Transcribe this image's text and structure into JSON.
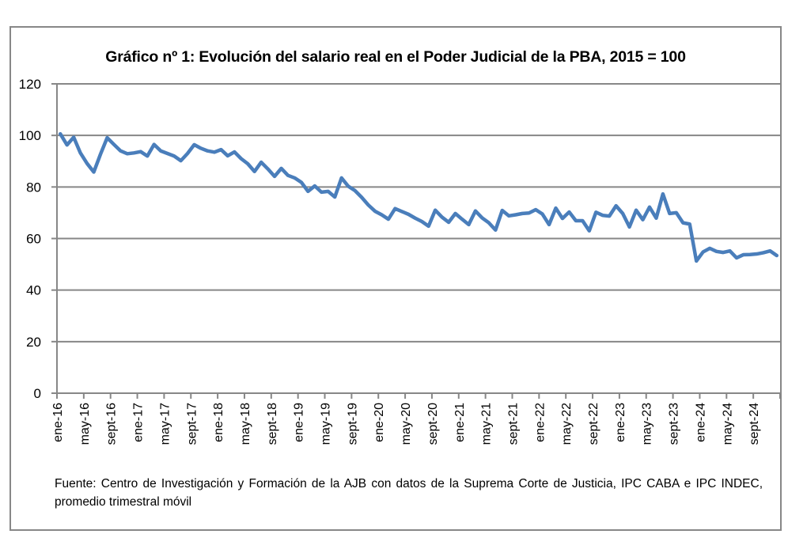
{
  "chart_data": {
    "type": "line",
    "title": "Gráfico nº 1: Evolución del salario real en el Poder Judicial de la PBA, 2015 = 100",
    "xlabel": "",
    "ylabel": "",
    "ylim": [
      0,
      120
    ],
    "yticks": [
      "0",
      "20",
      "40",
      "60",
      "80",
      "100",
      "120"
    ],
    "grid": true,
    "legend": "none",
    "line_color": "#4A7EBB",
    "x_tick_labels": [
      "ene-16",
      "may-16",
      "sept-16",
      "ene-17",
      "may-17",
      "sept-17",
      "ene-18",
      "may-18",
      "sept-18",
      "ene-19",
      "may-19",
      "sept-19",
      "ene-20",
      "may-20",
      "sept-20",
      "ene-21",
      "may-21",
      "sept-21",
      "ene-22",
      "may-22",
      "sept-22",
      "ene-23",
      "may-23",
      "sept-23",
      "ene-24",
      "may-24",
      "sept-24"
    ],
    "x_start": "ene-16",
    "x_end": "dic-24",
    "frequency": "monthly",
    "series": [
      {
        "name": "Salario real (2015 = 100)",
        "values": [
          100.6,
          96.3,
          99.3,
          93.2,
          89.1,
          85.8,
          92.7,
          99.1,
          96.5,
          94.0,
          92.9,
          93.2,
          93.7,
          92.0,
          96.5,
          94.0,
          93.0,
          92.0,
          90.2,
          93.0,
          96.4,
          95.0,
          94.0,
          93.5,
          94.5,
          92.1,
          93.6,
          91.0,
          89.0,
          86.0,
          89.6,
          87.0,
          84.1,
          87.2,
          84.5,
          83.5,
          81.8,
          78.3,
          80.4,
          78.0,
          78.3,
          76.1,
          83.5,
          80.3,
          78.6,
          76.0,
          73.0,
          70.6,
          69.2,
          67.5,
          71.6,
          70.5,
          69.4,
          67.9,
          66.6,
          64.8,
          71.0,
          68.3,
          66.3,
          69.7,
          67.5,
          65.4,
          70.7,
          68.0,
          66.1,
          63.3,
          70.9,
          68.8,
          69.2,
          69.7,
          69.9,
          71.2,
          69.5,
          65.4,
          71.8,
          67.8,
          70.3,
          66.9,
          66.9,
          63.0,
          70.2,
          69.0,
          68.7,
          72.7,
          69.7,
          64.5,
          71.0,
          67.3,
          72.2,
          67.9,
          77.3,
          69.7,
          70.0,
          66.1,
          65.6,
          51.3,
          54.8,
          56.2,
          55.0,
          54.6,
          55.2,
          52.5,
          53.7,
          53.8,
          54.0,
          54.5,
          55.2,
          53.4
        ]
      }
    ]
  },
  "footer": {
    "source_text": "Fuente: Centro de Investigación y Formación de la AJB con datos de la Suprema Corte de Justicia, IPC CABA e IPC INDEC, promedio trimestral móvil"
  }
}
